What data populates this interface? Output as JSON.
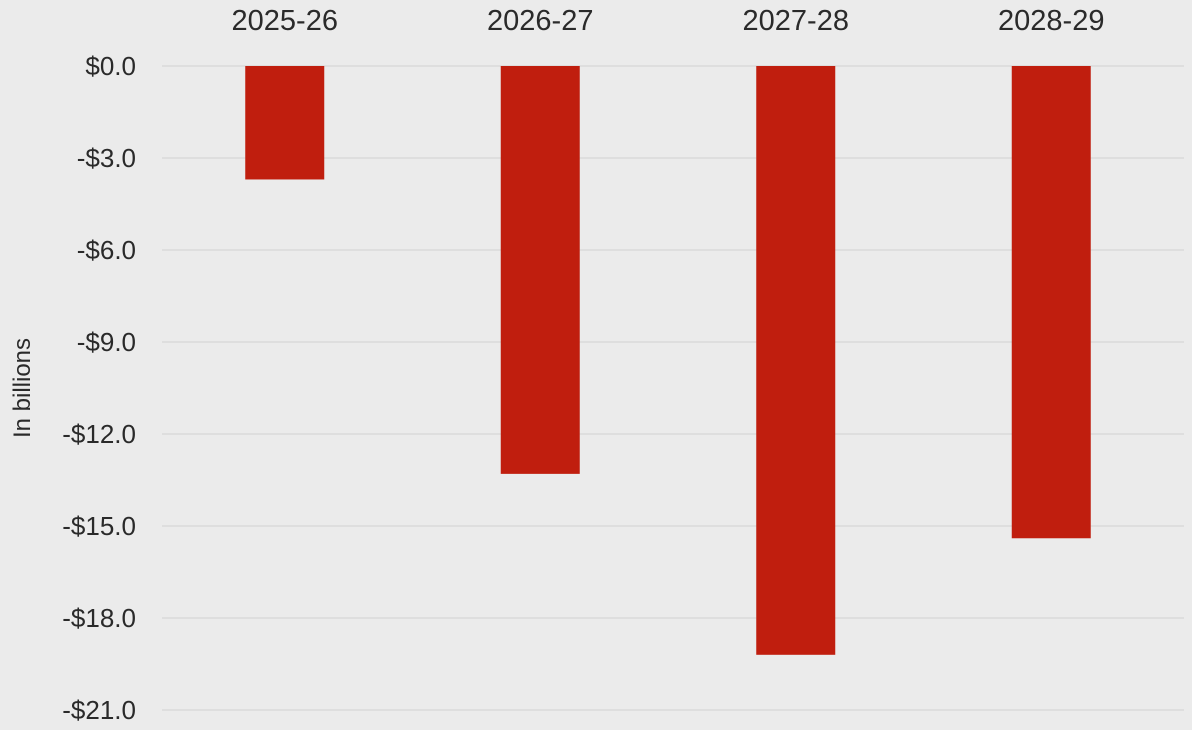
{
  "chart_data": {
    "type": "bar",
    "title": "",
    "xlabel": "",
    "ylabel": "In billions",
    "categories": [
      "2025-26",
      "2026-27",
      "2027-28",
      "2028-29"
    ],
    "series": [
      {
        "values": [
          -3.7,
          -13.3,
          -19.2,
          -15.4
        ]
      }
    ],
    "ylim": [
      -21,
      0
    ],
    "y_ticks": [
      0,
      -3,
      -6,
      -9,
      -12,
      -15,
      -18,
      -21
    ],
    "y_tick_labels": [
      "$0.0",
      "-$3.0",
      "-$6.0",
      "-$9.0",
      "-$12.0",
      "-$15.0",
      "-$18.0",
      "-$21.0"
    ],
    "grid": true,
    "legend": "none",
    "x_axis_position": "top",
    "colors": {
      "bar": "#c01e0e",
      "background": "#ebebeb",
      "grid": "#d6d6d6",
      "text": "#2a2a2a"
    }
  }
}
